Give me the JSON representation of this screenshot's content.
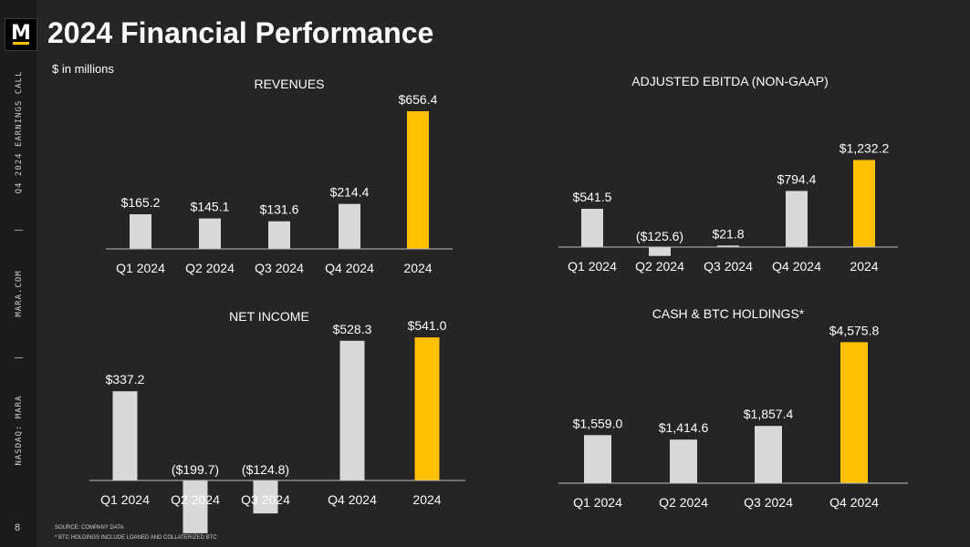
{
  "page": {
    "title": "2024 Financial Performance",
    "units": "$ in millions",
    "page_number": "8",
    "side_labels": [
      "Q4 2024 EARNINGS CALL",
      "MARA.COM",
      "NASDAQ: MARA"
    ],
    "logo_letter": "M",
    "footnotes": [
      "SOURCE: COMPANY DATA",
      "* BTC HOLDINGS INCLUDE LOANED AND COLLATERIZED BTC"
    ]
  },
  "colors": {
    "background": "#262525",
    "bar_default": "#d9d9d9",
    "bar_highlight": "#ffc000",
    "axis": "#bfbfbf",
    "text": "#ffffff"
  },
  "chart_data": [
    {
      "type": "bar",
      "title": "REVENUES",
      "categories": [
        "Q1 2024",
        "Q2 2024",
        "Q3 2024",
        "Q4 2024",
        "2024"
      ],
      "values": [
        165.2,
        145.1,
        131.6,
        214.4,
        656.4
      ],
      "labels": [
        "$165.2",
        "$145.1",
        "$131.6",
        "$214.4",
        "$656.4"
      ],
      "highlight_index": 4
    },
    {
      "type": "bar",
      "title": "ADJUSTED EBITDA (NON-GAAP)",
      "categories": [
        "Q1 2024",
        "Q2 2024",
        "Q3 2024",
        "Q4 2024",
        "2024"
      ],
      "values": [
        541.5,
        -125.6,
        21.8,
        794.4,
        1232.2
      ],
      "labels": [
        "$541.5",
        "($125.6)",
        "$21.8",
        "$794.4",
        "$1,232.2"
      ],
      "highlight_index": 4
    },
    {
      "type": "bar",
      "title": "NET INCOME",
      "categories": [
        "Q1 2024",
        "Q2 2024",
        "Q3 2024",
        "Q4 2024",
        "2024"
      ],
      "values": [
        337.2,
        -199.7,
        -124.8,
        528.3,
        541.0
      ],
      "labels": [
        "$337.2",
        "($199.7)",
        "($124.8)",
        "$528.3",
        "$541.0"
      ],
      "highlight_index": 4
    },
    {
      "type": "bar",
      "title": "CASH & BTC HOLDINGS*",
      "categories": [
        "Q1 2024",
        "Q2 2024",
        "Q3 2024",
        "Q4 2024"
      ],
      "values": [
        1559.0,
        1414.6,
        1857.4,
        4575.8
      ],
      "labels": [
        "$1,559.0",
        "$1,414.6",
        "$1,857.4",
        "$4,575.8"
      ],
      "highlight_index": 3
    }
  ]
}
